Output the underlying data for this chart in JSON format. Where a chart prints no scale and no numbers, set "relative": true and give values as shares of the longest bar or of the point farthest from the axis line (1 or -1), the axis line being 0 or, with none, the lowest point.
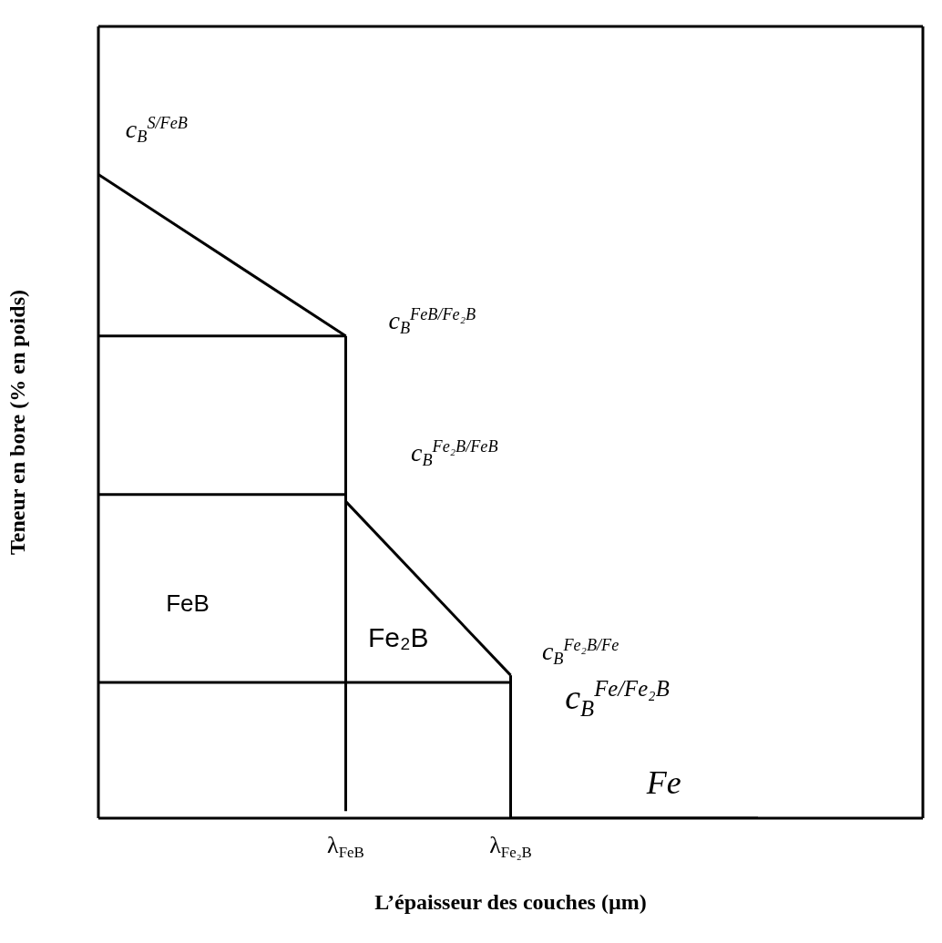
{
  "chart_data": {
    "type": "line",
    "xlabel": "L’épaisseur des couches (µm)",
    "ylabel": "Teneur en bore (% en poids)",
    "relative": true,
    "marker": "none",
    "line_style": "solid",
    "categories": [
      null,
      null,
      null,
      null,
      null,
      null,
      "λ$_{FeB}$",
      null,
      null,
      null,
      "λ$_{Fe₂B}$",
      null,
      null,
      null,
      null,
      null,
      null,
      null,
      null,
      null,
      null
    ],
    "series": [
      {
        "color": "#000000",
        "values": [
          1,
          null,
          null,
          null,
          null,
          null,
          0.749,
          null,
          null,
          null,
          null,
          null,
          null,
          null,
          null,
          null,
          null,
          null,
          null,
          null,
          null
        ]
      },
      {
        "color": "#000000",
        "x": [
          "λ$_{FeB}$",
          "λ$_{FeB}$"
        ],
        "values": [
          0.749,
          0.011
        ]
      },
      {
        "color": "#000000",
        "values": [
          null,
          null,
          null,
          null,
          null,
          null,
          0.492,
          null,
          null,
          null,
          0.222,
          null,
          null,
          null,
          null,
          null,
          null,
          null,
          null,
          null,
          null
        ]
      },
      {
        "color": "#000000",
        "x": [
          "λ$_{Fe₂B}$",
          "λ$_{Fe₂B}$"
        ],
        "values": [
          0.222,
          0
        ]
      },
      {
        "color": "#000000",
        "values": [
          null,
          null,
          null,
          null,
          null,
          null,
          null,
          null,
          null,
          null,
          0,
          null,
          null,
          null,
          null,
          null,
          0,
          null,
          null,
          null,
          null
        ]
      },
      {
        "color": "#000000",
        "values": [
          0.749,
          null,
          null,
          null,
          null,
          null,
          0.749,
          null,
          null,
          null,
          null,
          null,
          null,
          null,
          null,
          null,
          null,
          null,
          null,
          null,
          null
        ]
      },
      {
        "color": "#000000",
        "values": [
          0.503,
          null,
          null,
          null,
          null,
          null,
          0.503,
          null,
          null,
          null,
          null,
          null,
          null,
          null,
          null,
          null,
          null,
          null,
          null,
          null,
          null
        ]
      },
      {
        "color": "#000000",
        "values": [
          0.211,
          null,
          null,
          null,
          null,
          null,
          null,
          null,
          null,
          null,
          0.211,
          null,
          null,
          null,
          null,
          null,
          null,
          null,
          null,
          null,
          null
        ]
      }
    ],
    "annotations": [
      "c$_{B}$$^{S/FeB}$",
      "c$_{B}$$^{FeB/Fe₂B}$",
      "c$_{B}$$^{Fe₂B/FeB}$",
      "c$_{B}$$^{Fe₂B/Fe}$",
      "c$_{B}$$^{Fe/Fe₂B}$",
      "Fe",
      "FeB",
      "Fe₂B"
    ]
  }
}
